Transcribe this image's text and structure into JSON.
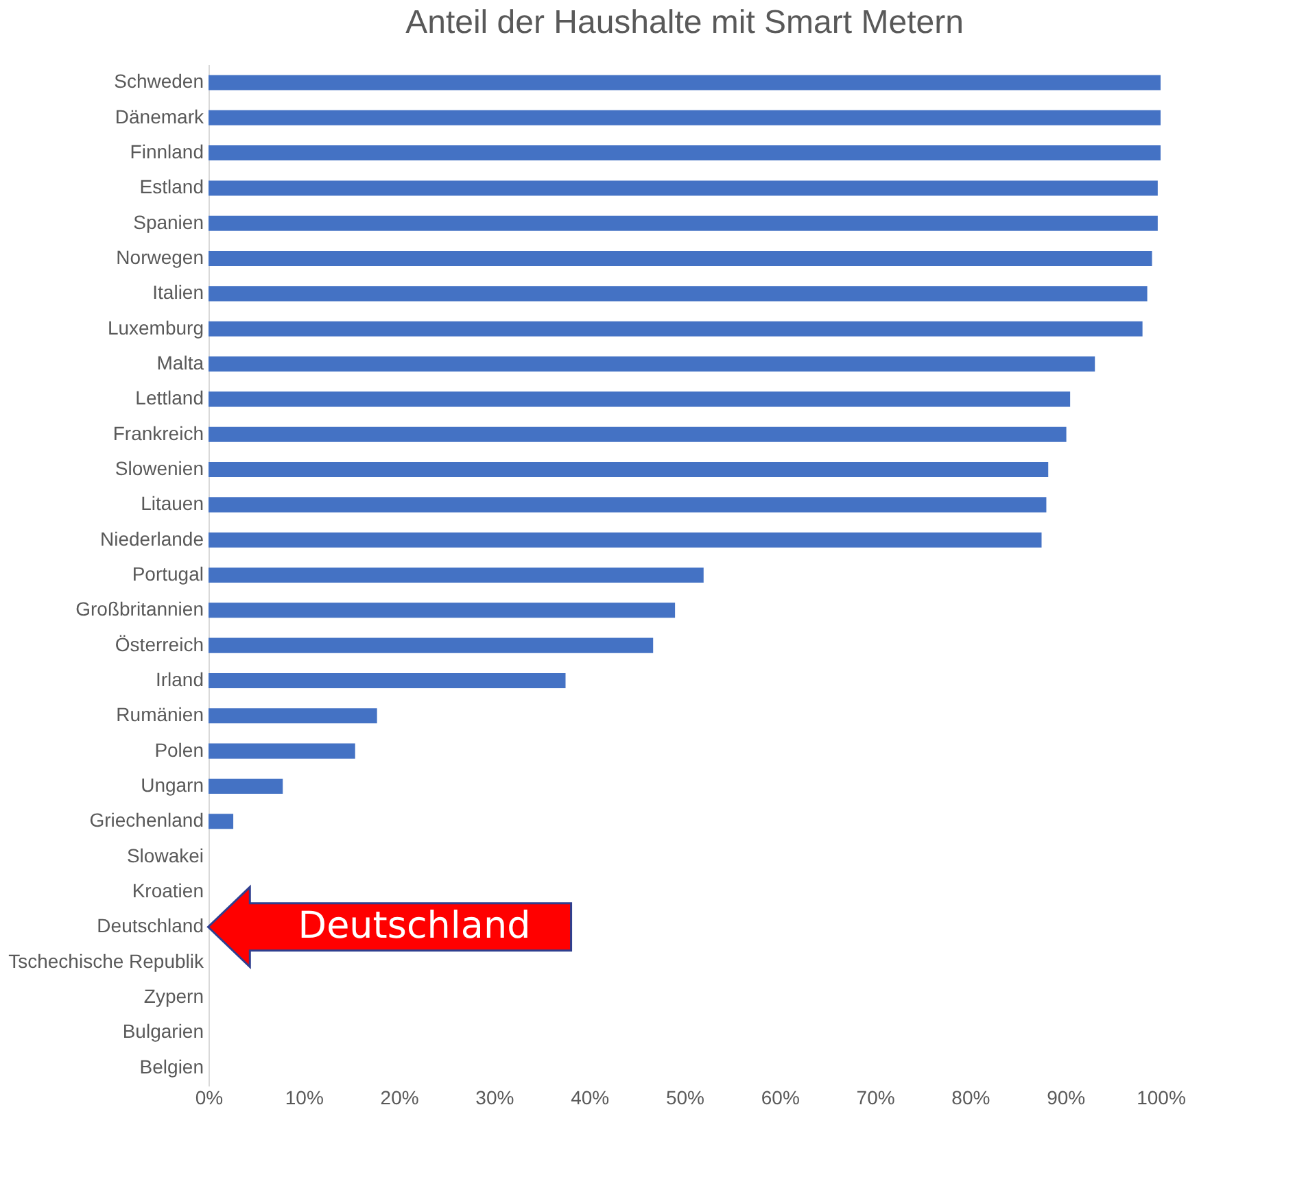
{
  "chart_data": {
    "type": "bar",
    "orientation": "horizontal",
    "title": "Anteil der Haushalte mit Smart Metern",
    "categories": [
      "Schweden",
      "Dänemark",
      "Finnland",
      "Estland",
      "Spanien",
      "Norwegen",
      "Italien",
      "Luxemburg",
      "Malta",
      "Lettland",
      "Frankreich",
      "Slowenien",
      "Litauen",
      "Niederlande",
      "Portugal",
      "Großbritannien",
      "Österreich",
      "Irland",
      "Rumänien",
      "Polen",
      "Ungarn",
      "Griechenland",
      "Slowakei",
      "Kroatien",
      "Deutschland",
      "Tschechische Republik",
      "Zypern",
      "Bulgarien",
      "Belgien"
    ],
    "values": [
      100,
      100,
      100,
      99.7,
      99.7,
      99.1,
      98.6,
      98.1,
      93.1,
      90.5,
      90.1,
      88.2,
      88.0,
      87.5,
      52.0,
      49.0,
      46.7,
      37.5,
      17.7,
      15.4,
      7.8,
      2.6,
      0,
      0,
      0,
      0,
      0,
      0,
      0
    ],
    "color": "#4472c4",
    "xlim": [
      0,
      100
    ],
    "xticks": [
      {
        "value": 0,
        "label": "0%"
      },
      {
        "value": 10,
        "label": "10%"
      },
      {
        "value": 20,
        "label": "20%"
      },
      {
        "value": 30,
        "label": "30%"
      },
      {
        "value": 40,
        "label": "40%"
      },
      {
        "value": 50,
        "label": "50%"
      },
      {
        "value": 60,
        "label": "60%"
      },
      {
        "value": 70,
        "label": "70%"
      },
      {
        "value": 80,
        "label": "80%"
      },
      {
        "value": 90,
        "label": "90%"
      },
      {
        "value": 100,
        "label": "100%"
      }
    ],
    "grid": false,
    "annotations": [
      {
        "text": "Deutschland",
        "x": 0,
        "y": "Deutschland"
      }
    ]
  }
}
